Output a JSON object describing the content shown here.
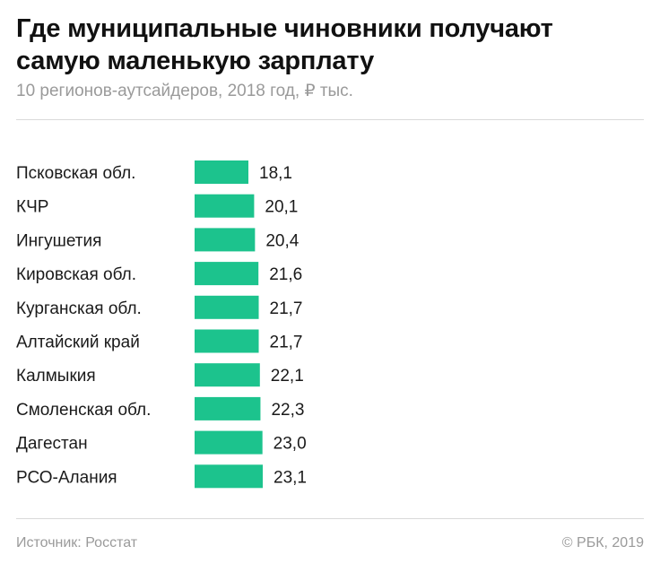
{
  "title": "Где муниципальные чиновники получают самую маленькую зарплату",
  "subtitle": "10 регионов-аутсайдеров, 2018 год, ₽ тыс.",
  "source": "Источник: Росстат",
  "copyright": "© РБК, 2019",
  "colors": {
    "bar": "#1cc38d",
    "text": "#1a1a1a",
    "muted": "#9a9a9a"
  },
  "chart_data": {
    "type": "bar",
    "orientation": "horizontal",
    "categories": [
      "Псковская обл.",
      "КЧР",
      "Ингушетия",
      "Кировская обл.",
      "Курганская обл.",
      "Алтайский край",
      "Калмыкия",
      "Смоленская обл.",
      "Дагестан",
      "РСО-Алания"
    ],
    "values": [
      18.1,
      20.1,
      20.4,
      21.6,
      21.7,
      21.7,
      22.1,
      22.3,
      23.0,
      23.1
    ],
    "value_labels": [
      "18,1",
      "20,1",
      "20,4",
      "21,6",
      "21,7",
      "21,7",
      "22,1",
      "22,3",
      "23,0",
      "23,1"
    ],
    "title": "Где муниципальные чиновники получают самую маленькую зарплату",
    "subtitle": "10 регионов-аутсайдеров, 2018 год, ₽ тыс.",
    "grid": false,
    "legend": "none"
  }
}
